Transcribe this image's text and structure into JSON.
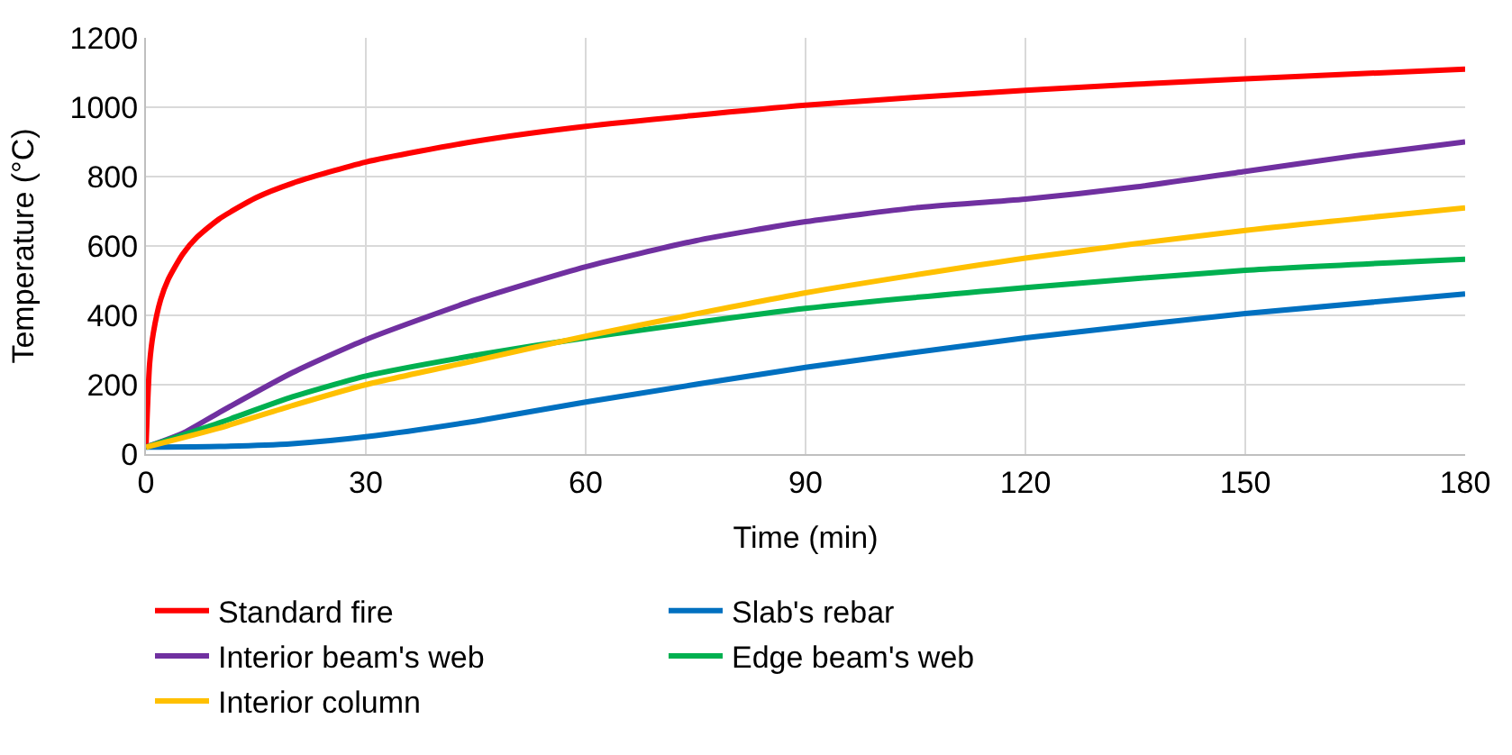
{
  "chart_data": {
    "type": "line",
    "xlabel": "Time (min)",
    "ylabel": "Temperature (°C)",
    "xlim": [
      0,
      180
    ],
    "xticks": [
      0,
      30,
      60,
      90,
      120,
      150,
      180
    ],
    "ylim": [
      0,
      1200
    ],
    "yticks": [
      0,
      200,
      400,
      600,
      800,
      1000,
      1200
    ],
    "grid": true,
    "legend": "bottom",
    "marker": "none",
    "line_style": "solid",
    "series": [
      {
        "name": "Standard fire",
        "color": "#ff0000",
        "x": [
          0,
          0.5,
          1,
          2,
          3,
          5,
          7,
          10,
          15,
          20,
          30,
          45,
          60,
          90,
          120,
          150,
          180
        ],
        "values": [
          20,
          261,
          349,
          445,
          502,
          576,
          626,
          678,
          739,
          781,
          842,
          902,
          945,
          1006,
          1049,
          1082,
          1110
        ]
      },
      {
        "name": "Slab's rebar",
        "color": "#0070c0",
        "x": [
          0,
          10,
          20,
          30,
          45,
          60,
          90,
          120,
          150,
          180
        ],
        "values": [
          20,
          22,
          30,
          50,
          95,
          150,
          250,
          335,
          405,
          462
        ]
      },
      {
        "name": "Interior beam's web",
        "color": "#7030a0",
        "x": [
          0,
          5,
          10,
          20,
          30,
          45,
          60,
          75,
          90,
          105,
          120,
          135,
          150,
          165,
          180
        ],
        "values": [
          20,
          60,
          120,
          235,
          330,
          445,
          540,
          615,
          670,
          710,
          735,
          770,
          815,
          860,
          900
        ]
      },
      {
        "name": "Edge beam's web",
        "color": "#00b050",
        "x": [
          0,
          10,
          20,
          30,
          45,
          60,
          90,
          120,
          150,
          180
        ],
        "values": [
          20,
          90,
          165,
          225,
          285,
          335,
          420,
          480,
          530,
          562
        ]
      },
      {
        "name": "Interior column",
        "color": "#ffc000",
        "x": [
          0,
          10,
          20,
          30,
          45,
          60,
          90,
          120,
          150,
          180
        ],
        "values": [
          20,
          75,
          140,
          200,
          270,
          340,
          465,
          565,
          645,
          710
        ]
      }
    ]
  }
}
